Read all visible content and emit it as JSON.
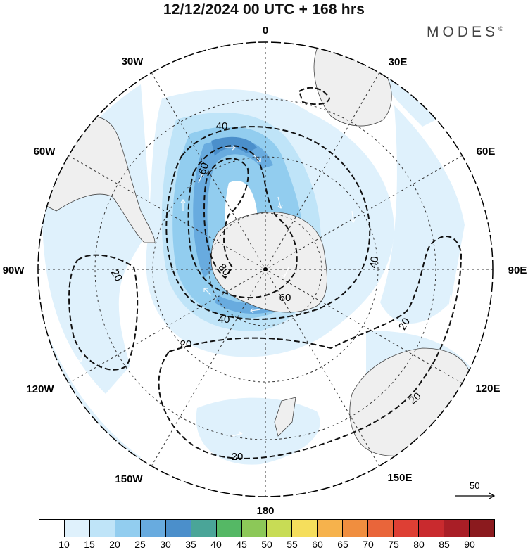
{
  "header": {
    "title": "12/12/2024  00 UTC  + 168 hrs",
    "brand": "MODES",
    "brand_mark": "©"
  },
  "map": {
    "projection": "south polar stereographic",
    "longitude_labels": {
      "top": "0",
      "upper_right": "30E",
      "right_upper": "60E",
      "right": "90E",
      "right_lower": "120E",
      "lower_right": "150E",
      "bottom": "180",
      "lower_left": "150W",
      "left_lower": "120W",
      "left": "90W",
      "left_upper": "60W",
      "upper_left": "30W"
    },
    "contour_labels": {
      "c20_west": "20",
      "c20_south": "20",
      "c20_southwest": "20",
      "c20_east": "20",
      "c20_southeast": "20",
      "c40_north": "40",
      "c40_east": "40",
      "c40_south": "40",
      "c60_north": "60",
      "c60_south": "60",
      "c80_west": "80"
    },
    "reference_vector": "50"
  },
  "colorbar": {
    "colors": [
      "#ffffff",
      "#dff1fc",
      "#bfe4f8",
      "#92cdef",
      "#68abdf",
      "#4b8fcb",
      "#4aa598",
      "#55b865",
      "#8cc858",
      "#c8dc55",
      "#f5de5c",
      "#f6b24c",
      "#f08e3f",
      "#e9653a",
      "#de3f34",
      "#c92a2e",
      "#a91e26",
      "#8b1a1e"
    ],
    "ticks": [
      "10",
      "15",
      "20",
      "25",
      "30",
      "35",
      "40",
      "45",
      "50",
      "55",
      "60",
      "65",
      "70",
      "75",
      "80",
      "85",
      "90"
    ]
  }
}
